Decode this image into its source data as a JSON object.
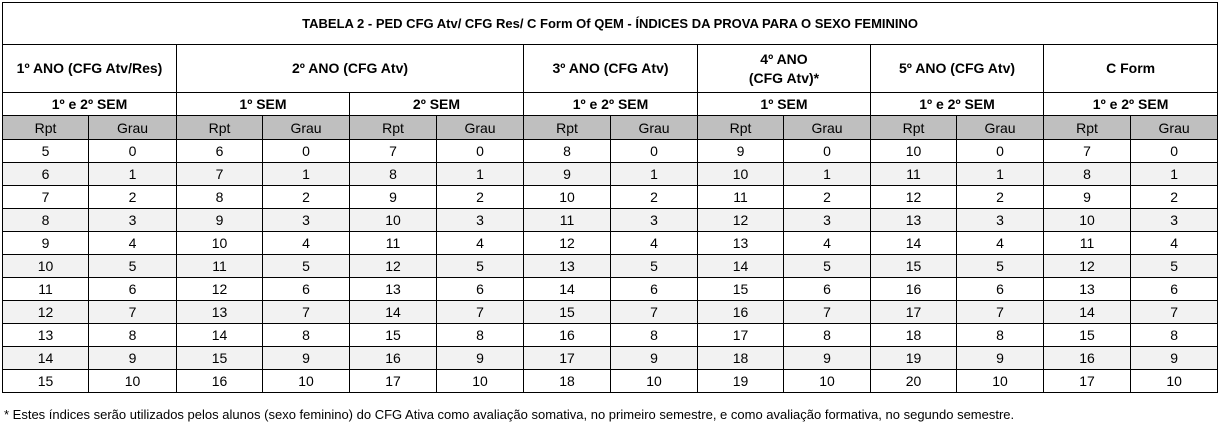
{
  "title": "TABELA 2 - PED CFG Atv/ CFG Res/ C Form Of QEM - ÍNDICES DA PROVA PARA O SEXO FEMININO",
  "years": [
    {
      "label": "1º ANO (CFG Atv/Res)",
      "span": 2
    },
    {
      "label": "2º ANO (CFG Atv)",
      "span": 4
    },
    {
      "label": "3º ANO (CFG Atv)",
      "span": 2
    },
    {
      "label_line1": "4º ANO",
      "label_line2": "(CFG Atv)*",
      "span": 2
    },
    {
      "label": "5º ANO (CFG Atv)",
      "span": 2
    },
    {
      "label": "C Form",
      "span": 2
    }
  ],
  "semesters": [
    "1º e 2º SEM",
    "1º SEM",
    "2º SEM",
    "1º e 2º SEM",
    "1º SEM",
    "1º e 2º SEM",
    "1º e 2º SEM"
  ],
  "column_labels": {
    "rpt": "Rpt",
    "grau": "Grau"
  },
  "rows": [
    [
      "5",
      "0",
      "6",
      "0",
      "7",
      "0",
      "8",
      "0",
      "9",
      "0",
      "10",
      "0",
      "7",
      "0"
    ],
    [
      "6",
      "1",
      "7",
      "1",
      "8",
      "1",
      "9",
      "1",
      "10",
      "1",
      "11",
      "1",
      "8",
      "1"
    ],
    [
      "7",
      "2",
      "8",
      "2",
      "9",
      "2",
      "10",
      "2",
      "11",
      "2",
      "12",
      "2",
      "9",
      "2"
    ],
    [
      "8",
      "3",
      "9",
      "3",
      "10",
      "3",
      "11",
      "3",
      "12",
      "3",
      "13",
      "3",
      "10",
      "3"
    ],
    [
      "9",
      "4",
      "10",
      "4",
      "11",
      "4",
      "12",
      "4",
      "13",
      "4",
      "14",
      "4",
      "11",
      "4"
    ],
    [
      "10",
      "5",
      "11",
      "5",
      "12",
      "5",
      "13",
      "5",
      "14",
      "5",
      "15",
      "5",
      "12",
      "5"
    ],
    [
      "11",
      "6",
      "12",
      "6",
      "13",
      "6",
      "14",
      "6",
      "15",
      "6",
      "16",
      "6",
      "13",
      "6"
    ],
    [
      "12",
      "7",
      "13",
      "7",
      "14",
      "7",
      "15",
      "7",
      "16",
      "7",
      "17",
      "7",
      "14",
      "7"
    ],
    [
      "13",
      "8",
      "14",
      "8",
      "15",
      "8",
      "16",
      "8",
      "17",
      "8",
      "18",
      "8",
      "15",
      "8"
    ],
    [
      "14",
      "9",
      "15",
      "9",
      "16",
      "9",
      "17",
      "9",
      "18",
      "9",
      "19",
      "9",
      "16",
      "9"
    ],
    [
      "15",
      "10",
      "16",
      "10",
      "17",
      "10",
      "18",
      "10",
      "19",
      "10",
      "20",
      "10",
      "17",
      "10"
    ]
  ],
  "footnote": "* Estes índices serão utilizados pelos alunos (sexo feminino) do CFG Ativa como avaliação somativa, no primeiro semestre, e como avaliação formativa, no segundo semestre.",
  "colors": {
    "header_gray": "#bfbfbf",
    "alt_row": "#f2f2f2",
    "border": "#000000"
  }
}
